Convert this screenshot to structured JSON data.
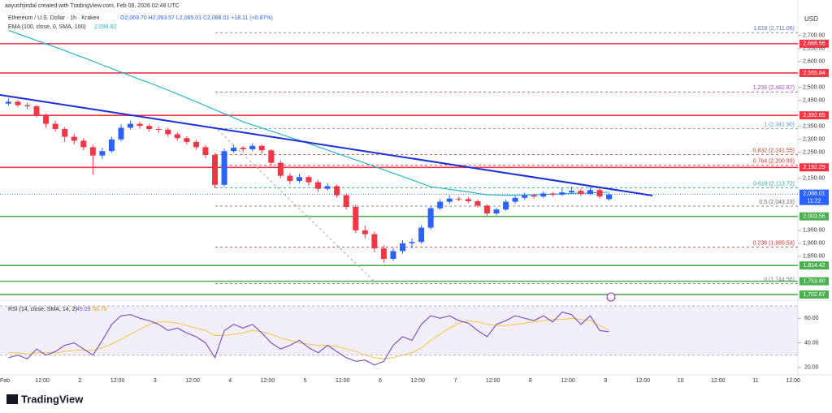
{
  "header": {
    "credit": "aayushjindal created with TradingView.com, Feb 09, 2026 02:48 UTC",
    "symbol": "Ethereum / U.S. Dollar · 1h · Kraken",
    "ohlc": "O2,069.70 H2,093.57 L2,065.01 C2,088.01 +18.11 (+0.87%)"
  },
  "chart_data": {
    "type": "candlestick",
    "currency": "USD",
    "up_color": "#2962ff",
    "down_color": "#f23645",
    "ylim": [
      1687,
      2790
    ],
    "yticks": [
      {
        "value": 2700,
        "label": "2,700.00"
      },
      {
        "value": 2650,
        "label": "2,650.00"
      },
      {
        "value": 2600,
        "label": "2,600.00"
      },
      {
        "value": 2500,
        "label": "2,500.00"
      },
      {
        "value": 2450,
        "label": "2,450.00"
      },
      {
        "value": 2350,
        "label": "2,350.00"
      },
      {
        "value": 2300,
        "label": "2,300.00"
      },
      {
        "value": 2250,
        "label": "2,250.00"
      },
      {
        "value": 2150,
        "label": "2,150.00"
      },
      {
        "value": 1950,
        "label": "1,950.00"
      },
      {
        "value": 1900,
        "label": "1,900.00"
      },
      {
        "value": 1850,
        "label": "1,850.00"
      }
    ],
    "x_labels": [
      "Feb",
      "12:00",
      "2",
      "12:00",
      "3",
      "12:00",
      "4",
      "12:00",
      "5",
      "12:00",
      "6",
      "12:00",
      "7",
      "12:00",
      "8",
      "12:00",
      "9",
      "12:00",
      "10",
      "12:00",
      "11",
      "12:00"
    ],
    "candles": [
      [
        2438,
        2458,
        2430,
        2445
      ],
      [
        2445,
        2452,
        2425,
        2432
      ],
      [
        2432,
        2440,
        2418,
        2428
      ],
      [
        2428,
        2432,
        2385,
        2395
      ],
      [
        2395,
        2400,
        2345,
        2360
      ],
      [
        2360,
        2372,
        2330,
        2340
      ],
      [
        2340,
        2348,
        2290,
        2310
      ],
      [
        2310,
        2322,
        2282,
        2295
      ],
      [
        2295,
        2305,
        2258,
        2270
      ],
      [
        2270,
        2280,
        2165,
        2238
      ],
      [
        2238,
        2268,
        2225,
        2255
      ],
      [
        2255,
        2310,
        2248,
        2300
      ],
      [
        2300,
        2358,
        2292,
        2345
      ],
      [
        2345,
        2372,
        2338,
        2360
      ],
      [
        2360,
        2368,
        2342,
        2352
      ],
      [
        2352,
        2360,
        2330,
        2340
      ],
      [
        2340,
        2350,
        2325,
        2338
      ],
      [
        2338,
        2345,
        2310,
        2320
      ],
      [
        2320,
        2328,
        2295,
        2305
      ],
      [
        2305,
        2312,
        2280,
        2290
      ],
      [
        2290,
        2298,
        2260,
        2270
      ],
      [
        2270,
        2278,
        2228,
        2240
      ],
      [
        2240,
        2248,
        2112,
        2125
      ],
      [
        2125,
        2265,
        2118,
        2255
      ],
      [
        2255,
        2280,
        2248,
        2268
      ],
      [
        2268,
        2275,
        2250,
        2262
      ],
      [
        2262,
        2285,
        2255,
        2275
      ],
      [
        2275,
        2280,
        2245,
        2258
      ],
      [
        2258,
        2262,
        2198,
        2210
      ],
      [
        2210,
        2218,
        2150,
        2160
      ],
      [
        2160,
        2170,
        2128,
        2140
      ],
      [
        2140,
        2168,
        2132,
        2155
      ],
      [
        2155,
        2162,
        2122,
        2135
      ],
      [
        2135,
        2145,
        2098,
        2110
      ],
      [
        2110,
        2132,
        2102,
        2120
      ],
      [
        2120,
        2126,
        2075,
        2085
      ],
      [
        2085,
        2092,
        2030,
        2040
      ],
      [
        2040,
        2048,
        1940,
        1950
      ],
      [
        1950,
        1968,
        1920,
        1935
      ],
      [
        1935,
        1945,
        1865,
        1880
      ],
      [
        1880,
        1892,
        1826,
        1840
      ],
      [
        1840,
        1882,
        1832,
        1870
      ],
      [
        1870,
        1912,
        1860,
        1900
      ],
      [
        1900,
        1918,
        1880,
        1905
      ],
      [
        1905,
        1970,
        1898,
        1960
      ],
      [
        1960,
        2045,
        1952,
        2035
      ],
      [
        2035,
        2070,
        2028,
        2060
      ],
      [
        2060,
        2085,
        2052,
        2072
      ],
      [
        2072,
        2080,
        2062,
        2070
      ],
      [
        2070,
        2078,
        2055,
        2062
      ],
      [
        2062,
        2068,
        2038,
        2045
      ],
      [
        2045,
        2050,
        2005,
        2015
      ],
      [
        2015,
        2038,
        2008,
        2030
      ],
      [
        2030,
        2068,
        2025,
        2060
      ],
      [
        2060,
        2082,
        2052,
        2075
      ],
      [
        2075,
        2095,
        2068,
        2085
      ],
      [
        2085,
        2092,
        2072,
        2080
      ],
      [
        2080,
        2100,
        2074,
        2092
      ],
      [
        2092,
        2098,
        2080,
        2088
      ],
      [
        2088,
        2112,
        2082,
        2096
      ],
      [
        2096,
        2118,
        2090,
        2102
      ],
      [
        2102,
        2110,
        2082,
        2090
      ],
      [
        2090,
        2116,
        2085,
        2105
      ],
      [
        2105,
        2112,
        2072,
        2080
      ],
      [
        2069.7,
        2093.57,
        2065.01,
        2088.01
      ]
    ],
    "ema": {
      "label": "EMA (100, close, 0, SMA, 100)",
      "current": "2,096.82",
      "color": "#26b6c8",
      "values": [
        2720,
        2707,
        2694,
        2681,
        2668,
        2655,
        2642,
        2628,
        2615,
        2601,
        2587,
        2573,
        2559,
        2545,
        2531,
        2518,
        2504,
        2490,
        2475,
        2460,
        2445,
        2430,
        2414,
        2399,
        2384,
        2368,
        2356,
        2344,
        2332,
        2320,
        2308,
        2296,
        2284,
        2271,
        2259,
        2246,
        2234,
        2221,
        2209,
        2196,
        2183,
        2170,
        2157,
        2144,
        2131,
        2118,
        2113,
        2108,
        2103,
        2098,
        2092,
        2087,
        2086,
        2085,
        2085,
        2086,
        2087,
        2088,
        2089,
        2090,
        2092,
        2093,
        2094,
        2095,
        2096.82
      ]
    },
    "levels": [
      {
        "value": 2668.56,
        "label": "2,668.56",
        "color": "#f23645"
      },
      {
        "value": 2555.84,
        "label": "2,555.84",
        "color": "#f23645"
      },
      {
        "value": 2392.65,
        "label": "2,392.65",
        "color": "#f23645"
      },
      {
        "value": 2192.29,
        "label": "2,192.29",
        "color": "#f23645"
      },
      {
        "value": 2003.56,
        "label": "2,003.56",
        "color": "#4caf50"
      },
      {
        "value": 1814.42,
        "label": "1,814.42",
        "color": "#4caf50"
      },
      {
        "value": 1753.8,
        "label": "1,753.80",
        "color": "#4caf50"
      },
      {
        "value": 1702.67,
        "label": "1,702.67",
        "color": "#4caf50"
      }
    ],
    "fib": [
      {
        "value": 2711.06,
        "label": "1.618 (2,711.06)",
        "color": "#5c6bc0"
      },
      {
        "value": 2482.87,
        "label": "1.236 (2,482.87)",
        "color": "#9c4fb5"
      },
      {
        "value": 2341.9,
        "label": "1 (2,341.90)",
        "color": "#5b8fd0"
      },
      {
        "value": 2241.55,
        "label": "0.832 (2,241.55)",
        "color": "#c0392b"
      },
      {
        "value": 2200.93,
        "label": "0.764 (2,200.93)",
        "color": "#d32f2f"
      },
      {
        "value": 2113.72,
        "label": "0.618 (2,113.72)",
        "color": "#26a69a"
      },
      {
        "value": 2043.23,
        "label": "0.5 (2,043.23)",
        "color": "#666666"
      },
      {
        "value": 1885.53,
        "label": "0.236 (1,885.53)",
        "color": "#d32f2f"
      },
      {
        "value": 1744.56,
        "label": "0 (1,744.56)",
        "color": "#787b86"
      }
    ],
    "last": {
      "value": 2088.01,
      "label": "2,088.01",
      "countdown": "11:22",
      "color": "#2962ff"
    },
    "rsi": {
      "label": "RSI (14, close, SMA, 14, 2)",
      "current": "49.09",
      "sma_current": "50.70",
      "color": "#7e57c2",
      "sma_color": "#f5c542",
      "ylim": [
        14,
        72
      ],
      "band": [
        30,
        70
      ],
      "yticks": [
        {
          "value": 60,
          "label": "60.00"
        },
        {
          "value": 40,
          "label": "40.00"
        },
        {
          "value": 20,
          "label": "20.00"
        }
      ],
      "values": [
        28,
        30,
        27,
        35,
        30,
        33,
        38,
        40,
        35,
        30,
        42,
        55,
        62,
        63,
        60,
        58,
        55,
        50,
        52,
        48,
        45,
        40,
        28,
        50,
        55,
        52,
        55,
        48,
        40,
        35,
        38,
        42,
        36,
        32,
        38,
        33,
        28,
        25,
        26,
        22,
        25,
        38,
        45,
        42,
        55,
        62,
        60,
        62,
        58,
        56,
        50,
        45,
        55,
        58,
        62,
        60,
        58,
        62,
        57,
        65,
        63,
        55,
        62,
        50,
        49.09
      ],
      "sma": [
        32,
        32,
        31,
        32,
        32,
        32,
        33,
        34,
        34,
        34,
        36,
        39,
        43,
        47,
        51,
        55,
        57,
        57,
        56,
        54,
        52,
        50,
        46,
        46,
        47,
        48,
        50,
        49,
        47,
        44,
        42,
        40,
        39,
        38,
        38,
        37,
        35,
        33,
        30,
        28,
        27,
        28,
        30,
        32,
        36,
        42,
        47,
        52,
        56,
        58,
        57,
        55,
        54,
        54,
        55,
        56,
        57,
        58,
        59,
        59,
        60,
        59,
        58,
        54,
        50.7
      ]
    }
  },
  "footer": {
    "brand": "TradingView"
  }
}
